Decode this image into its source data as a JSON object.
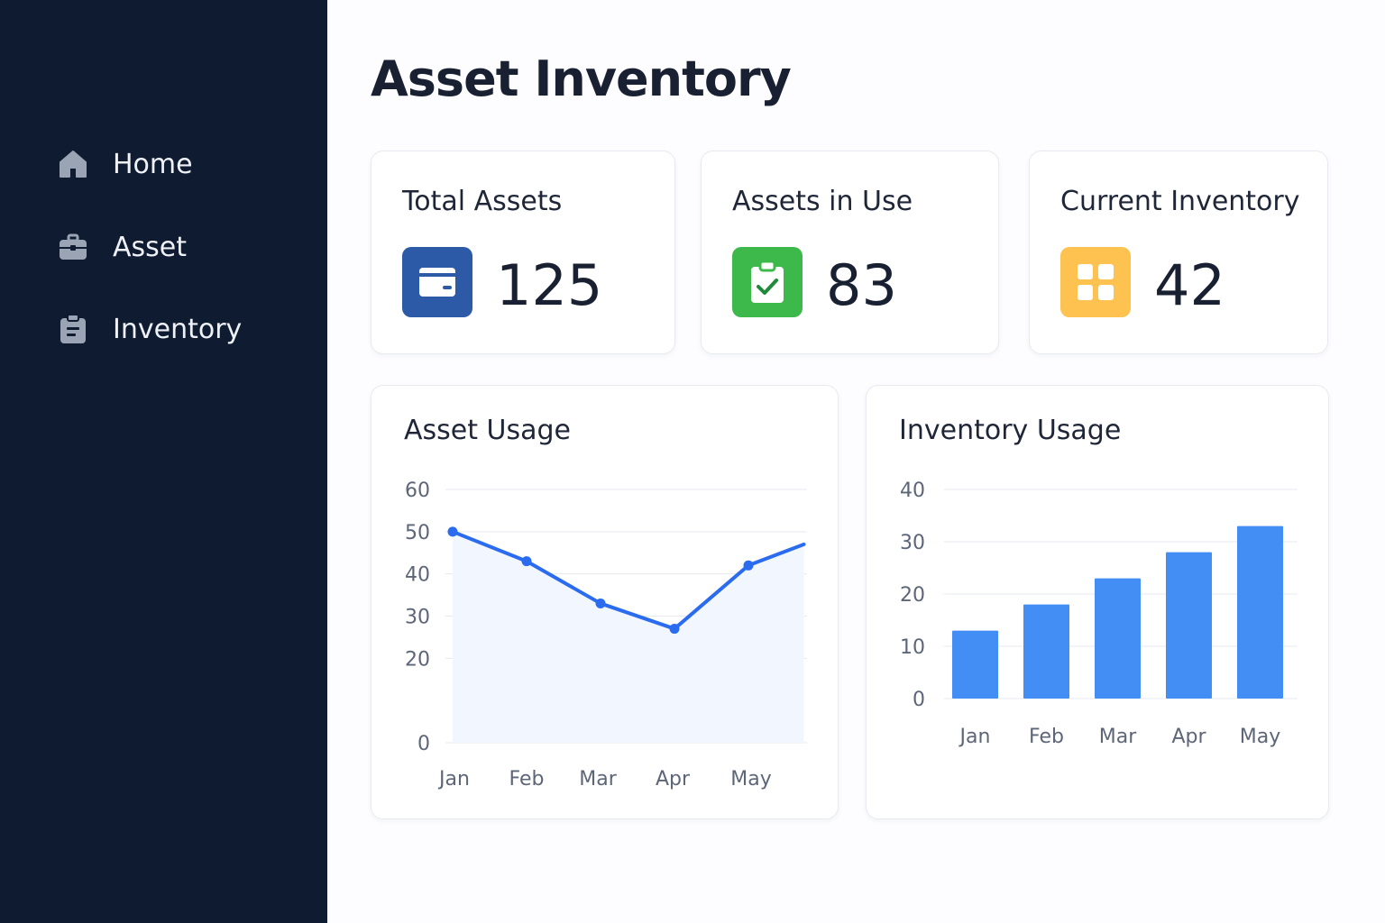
{
  "page": {
    "title": "Asset Inventory"
  },
  "sidebar": {
    "items": [
      {
        "label": "Home",
        "icon": "home-icon"
      },
      {
        "label": "Asset",
        "icon": "briefcase-icon"
      },
      {
        "label": "Inventory",
        "icon": "clipboard-icon"
      }
    ]
  },
  "stats": [
    {
      "title": "Total Assets",
      "value": "125",
      "icon": "wallet-icon",
      "color": "#2c5aa6"
    },
    {
      "title": "Assets in Use",
      "value": "83",
      "icon": "clipboard-check-icon",
      "color": "#3cb94a"
    },
    {
      "title": "Current Inventory",
      "value": "42",
      "icon": "grid-icon",
      "color": "#fdc24f"
    }
  ],
  "charts": {
    "asset_usage": {
      "title": "Asset Usage"
    },
    "inventory_usage": {
      "title": "Inventory Usage"
    }
  },
  "chart_data": [
    {
      "type": "line",
      "title": "Asset Usage",
      "categories": [
        "Jan",
        "Feb",
        "Mar",
        "Apr",
        "May"
      ],
      "x": [
        0,
        1,
        2,
        3,
        4,
        4.75
      ],
      "values": [
        50,
        43,
        33,
        27,
        42,
        47
      ],
      "yticks": [
        0,
        20,
        30,
        40,
        50,
        60
      ],
      "ylim": [
        0,
        60
      ],
      "grid": true,
      "color": "#2a6bef",
      "fill": "#f2f6fe"
    },
    {
      "type": "bar",
      "title": "Inventory Usage",
      "categories": [
        "Jan",
        "Feb",
        "Mar",
        "Apr",
        "May"
      ],
      "values": [
        13,
        18,
        23,
        28,
        33
      ],
      "yticks": [
        0,
        10,
        20,
        30,
        40
      ],
      "ylim": [
        0,
        40
      ],
      "grid": true,
      "color": "#428ef4"
    }
  ]
}
